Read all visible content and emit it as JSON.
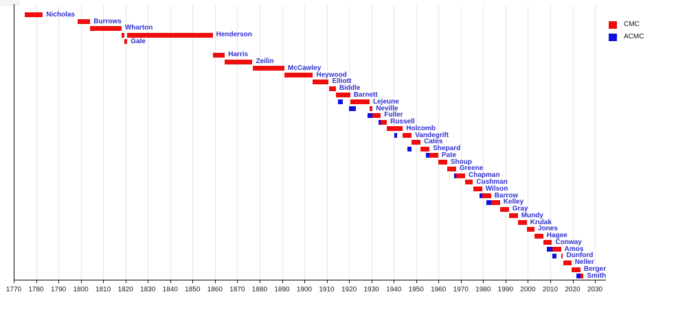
{
  "chart_data": {
    "type": "gantt-timeline",
    "title": "",
    "xlabel": "",
    "x_axis": {
      "min": 1770,
      "max": 2035,
      "ticks": [
        1770,
        1780,
        1790,
        1800,
        1810,
        1820,
        1830,
        1840,
        1850,
        1860,
        1870,
        1880,
        1890,
        1900,
        1910,
        1920,
        1930,
        1940,
        1950,
        1960,
        1970,
        1980,
        1990,
        2000,
        2010,
        2020,
        2030
      ],
      "gridlines": true
    },
    "legend": [
      {
        "label": "CMC",
        "color": "#ee0e0e"
      },
      {
        "label": "ACMC",
        "color": "#0f0fe0"
      }
    ],
    "legend_position": "top-right",
    "label_color": "#3030cf",
    "layout": {
      "blank_slot_after_index": 4
    },
    "rows": [
      {
        "name": "Nicholas",
        "acmc": [],
        "cmc": [
          [
            1775.0,
            1783.0
          ]
        ]
      },
      {
        "name": "Burrows",
        "acmc": [],
        "cmc": [
          [
            1798.5,
            1804.2
          ]
        ]
      },
      {
        "name": "Wharton",
        "acmc": [],
        "cmc": [
          [
            1804.2,
            1818.2
          ]
        ]
      },
      {
        "name": "Henderson",
        "acmc": [],
        "cmc": [
          [
            1818.2,
            1819.4
          ],
          [
            1820.8,
            1859.0
          ]
        ]
      },
      {
        "name": "Gale",
        "acmc": [],
        "cmc": [
          [
            1819.4,
            1820.8
          ]
        ]
      },
      {
        "name": "Harris",
        "acmc": [],
        "cmc": [
          [
            1859.0,
            1864.4
          ]
        ]
      },
      {
        "name": "Zeilin",
        "acmc": [],
        "cmc": [
          [
            1864.4,
            1876.8
          ]
        ]
      },
      {
        "name": "McCawley",
        "acmc": [],
        "cmc": [
          [
            1876.8,
            1891.1
          ]
        ]
      },
      {
        "name": "Heywood",
        "acmc": [],
        "cmc": [
          [
            1891.1,
            1903.8
          ]
        ]
      },
      {
        "name": "Elliott",
        "acmc": [],
        "cmc": [
          [
            1903.8,
            1910.9
          ]
        ]
      },
      {
        "name": "Biddle",
        "acmc": [],
        "cmc": [
          [
            1911.1,
            1914.1
          ]
        ]
      },
      {
        "name": "Barnett",
        "acmc": [],
        "cmc": [
          [
            1914.1,
            1920.5
          ]
        ]
      },
      {
        "name": "Lejeune",
        "acmc": [
          [
            1915.0,
            1917.3
          ]
        ],
        "cmc": [
          [
            1920.5,
            1929.2
          ]
        ]
      },
      {
        "name": "Neville",
        "acmc": [
          [
            1920.0,
            1923.2
          ]
        ],
        "cmc": [
          [
            1929.2,
            1930.5
          ]
        ]
      },
      {
        "name": "Fuller",
        "acmc": [
          [
            1928.3,
            1930.5
          ]
        ],
        "cmc": [
          [
            1930.5,
            1934.2
          ]
        ]
      },
      {
        "name": "Russell",
        "acmc": [
          [
            1933.1,
            1934.2
          ]
        ],
        "cmc": [
          [
            1934.2,
            1936.9
          ]
        ]
      },
      {
        "name": "Holcomb",
        "acmc": [],
        "cmc": [
          [
            1936.9,
            1944.0
          ]
        ]
      },
      {
        "name": "Vandegrift",
        "acmc": [
          [
            1940.2,
            1941.5
          ]
        ],
        "cmc": [
          [
            1944.0,
            1948.0
          ]
        ]
      },
      {
        "name": "Cates",
        "acmc": [],
        "cmc": [
          [
            1948.0,
            1952.0
          ]
        ]
      },
      {
        "name": "Shepard",
        "acmc": [
          [
            1946.0,
            1948.0
          ]
        ],
        "cmc": [
          [
            1952.0,
            1956.0
          ]
        ]
      },
      {
        "name": "Pate",
        "acmc": [
          [
            1954.5,
            1956.0
          ]
        ],
        "cmc": [
          [
            1956.0,
            1959.9
          ]
        ]
      },
      {
        "name": "Shoup",
        "acmc": [],
        "cmc": [
          [
            1960.0,
            1963.9
          ]
        ]
      },
      {
        "name": "Greene",
        "acmc": [],
        "cmc": [
          [
            1964.0,
            1967.9
          ]
        ]
      },
      {
        "name": "Chapman",
        "acmc": [
          [
            1967.0,
            1968.0
          ]
        ],
        "cmc": [
          [
            1968.0,
            1971.9
          ]
        ]
      },
      {
        "name": "Cushman",
        "acmc": [],
        "cmc": [
          [
            1972.0,
            1975.4
          ]
        ]
      },
      {
        "name": "Wilson",
        "acmc": [],
        "cmc": [
          [
            1975.5,
            1979.5
          ]
        ]
      },
      {
        "name": "Barrow",
        "acmc": [
          [
            1978.4,
            1979.5
          ]
        ],
        "cmc": [
          [
            1979.5,
            1983.5
          ]
        ]
      },
      {
        "name": "Kelley",
        "acmc": [
          [
            1981.5,
            1983.5
          ]
        ],
        "cmc": [
          [
            1983.5,
            1987.5
          ]
        ]
      },
      {
        "name": "Gray",
        "acmc": [],
        "cmc": [
          [
            1987.5,
            1991.5
          ]
        ]
      },
      {
        "name": "Mundy",
        "acmc": [],
        "cmc": [
          [
            1991.5,
            1995.5
          ]
        ]
      },
      {
        "name": "Krulak",
        "acmc": [],
        "cmc": [
          [
            1995.5,
            1999.5
          ]
        ]
      },
      {
        "name": "Jones",
        "acmc": [],
        "cmc": [
          [
            1999.5,
            2003.0
          ]
        ]
      },
      {
        "name": "Hagee",
        "acmc": [],
        "cmc": [
          [
            2003.0,
            2006.9
          ]
        ]
      },
      {
        "name": "Conway",
        "acmc": [],
        "cmc": [
          [
            2006.9,
            2010.8
          ]
        ]
      },
      {
        "name": "Amos",
        "acmc": [
          [
            2008.5,
            2010.8
          ]
        ],
        "cmc": [
          [
            2010.8,
            2014.8
          ]
        ]
      },
      {
        "name": "Dunford",
        "acmc": [
          [
            2010.8,
            2012.9
          ]
        ],
        "cmc": [
          [
            2014.8,
            2015.7
          ]
        ]
      },
      {
        "name": "Neller",
        "acmc": [],
        "cmc": [
          [
            2015.7,
            2019.5
          ]
        ]
      },
      {
        "name": "Berger",
        "acmc": [],
        "cmc": [
          [
            2019.5,
            2023.5
          ]
        ]
      },
      {
        "name": "Smith",
        "acmc": [
          [
            2021.8,
            2023.5
          ]
        ],
        "cmc": [
          [
            2023.5,
            2024.9
          ]
        ]
      }
    ]
  }
}
